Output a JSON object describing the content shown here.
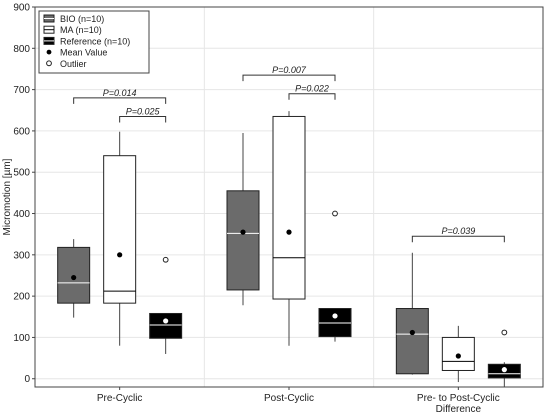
{
  "chart_data": {
    "type": "box",
    "ylabel": "Micromotion [µm]",
    "ylim": [
      -20,
      900
    ],
    "yticks": [
      0,
      100,
      200,
      300,
      400,
      500,
      600,
      700,
      800,
      900
    ],
    "groups": [
      {
        "label": "Pre-Cyclic"
      },
      {
        "label": "Post-Cyclic"
      },
      {
        "label": "Pre- to Post-Cyclic Difference"
      }
    ],
    "series": [
      {
        "name": "BIO (n=10)",
        "color": "#6b6b6b",
        "boxes": [
          {
            "min": 148,
            "q1": 183,
            "median": 232,
            "q3": 318,
            "max": 338,
            "mean": 245,
            "outliers": []
          },
          {
            "min": 178,
            "q1": 215,
            "median": 352,
            "q3": 455,
            "max": 595,
            "mean": 355,
            "outliers": []
          },
          {
            "min": 10,
            "q1": 12,
            "median": 108,
            "q3": 170,
            "max": 305,
            "mean": 112,
            "outliers": []
          }
        ]
      },
      {
        "name": "MA (n=10)",
        "color": "#ffffff",
        "boxes": [
          {
            "min": 80,
            "q1": 183,
            "median": 212,
            "q3": 540,
            "max": 598,
            "mean": 300,
            "outliers": []
          },
          {
            "min": 80,
            "q1": 193,
            "median": 293,
            "q3": 635,
            "max": 648,
            "mean": 355,
            "outliers": []
          },
          {
            "min": -8,
            "q1": 20,
            "median": 42,
            "q3": 100,
            "max": 128,
            "mean": 55,
            "outliers": []
          }
        ]
      },
      {
        "name": "Reference (n=10)",
        "color": "#000000",
        "boxes": [
          {
            "min": 60,
            "q1": 98,
            "median": 130,
            "q3": 158,
            "max": 158,
            "mean": 140,
            "outliers": [
              288
            ]
          },
          {
            "min": 90,
            "q1": 102,
            "median": 135,
            "q3": 170,
            "max": 170,
            "mean": 152,
            "outliers": [
              400
            ]
          },
          {
            "min": -20,
            "q1": 2,
            "median": 12,
            "q3": 35,
            "max": 40,
            "mean": 22,
            "outliers": [
              112
            ]
          }
        ]
      }
    ],
    "legend": {
      "position": "top-left",
      "entries": [
        "BIO (n=10)",
        "MA (n=10)",
        "Reference (n=10)",
        "Mean Value",
        "Outlier"
      ]
    },
    "significance": [
      {
        "label": "P=0.014",
        "group": 0,
        "from": 0,
        "to": 2,
        "y": 680
      },
      {
        "label": "P=0.025",
        "group": 0,
        "from": 1,
        "to": 2,
        "y": 635
      },
      {
        "label": "P=0.007",
        "group": 1,
        "from": 0,
        "to": 2,
        "y": 735
      },
      {
        "label": "P=0.022",
        "group": 1,
        "from": 1,
        "to": 2,
        "y": 690
      },
      {
        "label": "P=0.039",
        "group": 2,
        "from": 0,
        "to": 2,
        "y": 345
      }
    ],
    "grid": true
  }
}
